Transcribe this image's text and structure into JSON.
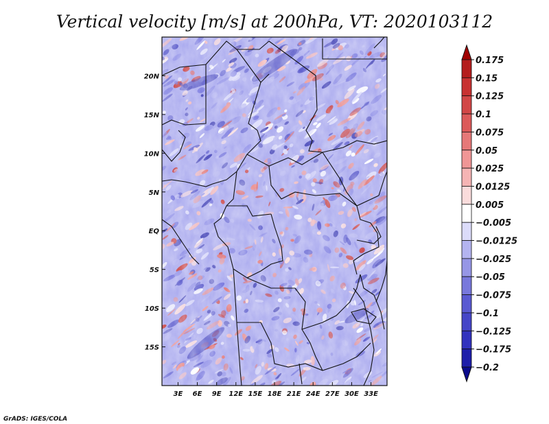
{
  "title": "Vertical velocity [m/s] at 200hPa, VT: 2020103112",
  "credit": "GrADS: IGES/COLA",
  "map": {
    "lon_labels": [
      "3E",
      "6E",
      "9E",
      "12E",
      "15E",
      "18E",
      "21E",
      "24E",
      "27E",
      "30E",
      "33E"
    ],
    "lat_labels": [
      "20N",
      "15N",
      "10N",
      "5N",
      "EQ",
      "5S",
      "10S",
      "15S"
    ],
    "lon_values": [
      3,
      6,
      9,
      12,
      15,
      18,
      21,
      24,
      27,
      30,
      33
    ],
    "lat_values": [
      20,
      15,
      10,
      5,
      0,
      -5,
      -10,
      -15
    ],
    "lon_range": [
      0.5,
      35.5
    ],
    "lat_range": [
      -20,
      25
    ],
    "field": "vertical velocity",
    "units": "m/s",
    "level": "200hPa"
  },
  "colorbar": {
    "labels": [
      "0.175",
      "0.15",
      "0.125",
      "0.1",
      "0.075",
      "0.05",
      "0.025",
      "0.0125",
      "0.005",
      "−0.005",
      "−0.0125",
      "−0.025",
      "−0.05",
      "−0.075",
      "−0.1",
      "−0.125",
      "−0.175",
      "−0.2"
    ],
    "colors": [
      "#a00000",
      "#b41e1e",
      "#c83232",
      "#d24646",
      "#dc5a5a",
      "#e67878",
      "#f09696",
      "#f5b4b4",
      "#fadcdc",
      "#ffffff",
      "#dcdcfa",
      "#b4b4f0",
      "#9696e6",
      "#7878dc",
      "#5a5ad2",
      "#4646c8",
      "#3232be",
      "#1e1eaa",
      "#0a0a8c"
    ]
  }
}
